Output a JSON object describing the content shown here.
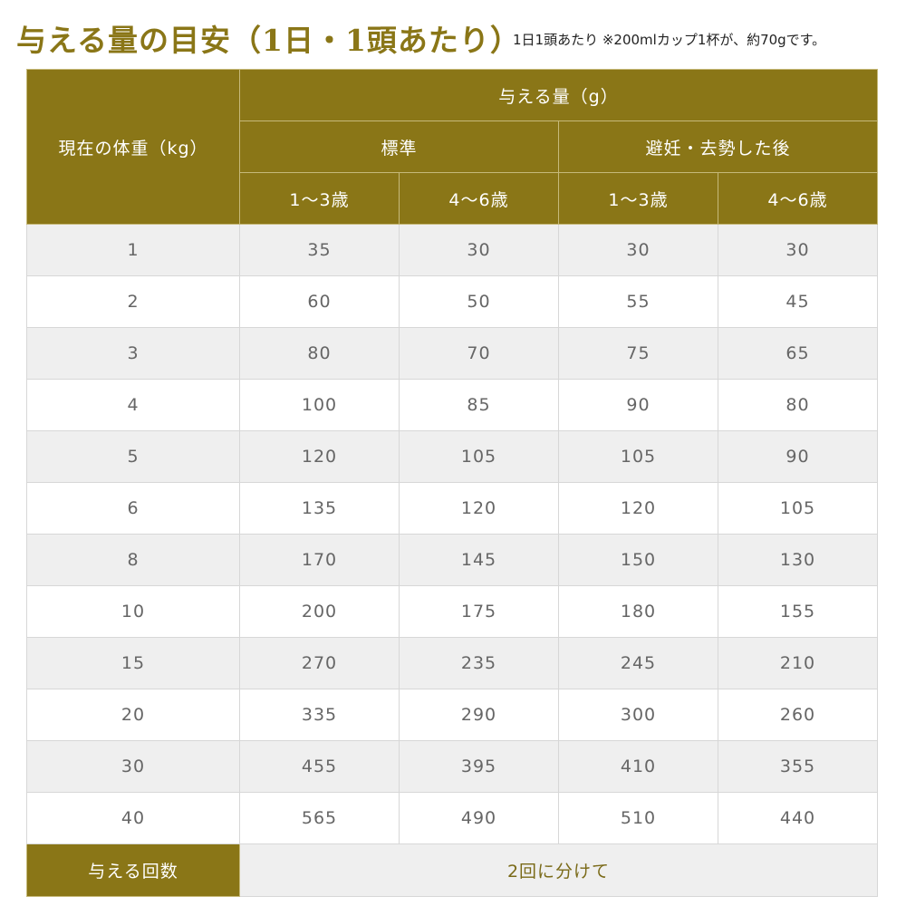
{
  "page": {
    "title": "与える量の目安（1日・1頭あたり）",
    "note": "1日1頭あたり ※200mlカップ1杯が、約70gです。"
  },
  "table": {
    "header": {
      "weight_label": "現在の体重（kg）",
      "amount_label": "与える量（g）",
      "group_standard": "標準",
      "group_neutered": "避妊・去勢した後",
      "age_1_3": "1～3歳",
      "age_4_6": "4～6歳"
    },
    "rows": [
      [
        "1",
        "35",
        "30",
        "30",
        "30"
      ],
      [
        "2",
        "60",
        "50",
        "55",
        "45"
      ],
      [
        "3",
        "80",
        "70",
        "75",
        "65"
      ],
      [
        "4",
        "100",
        "85",
        "90",
        "80"
      ],
      [
        "5",
        "120",
        "105",
        "105",
        "90"
      ],
      [
        "6",
        "135",
        "120",
        "120",
        "105"
      ],
      [
        "8",
        "170",
        "145",
        "150",
        "130"
      ],
      [
        "10",
        "200",
        "175",
        "180",
        "155"
      ],
      [
        "15",
        "270",
        "235",
        "245",
        "210"
      ],
      [
        "20",
        "335",
        "290",
        "300",
        "260"
      ],
      [
        "30",
        "455",
        "395",
        "410",
        "355"
      ],
      [
        "40",
        "565",
        "490",
        "510",
        "440"
      ]
    ],
    "footer": {
      "label": "与える回数",
      "value": "2回に分けて"
    }
  },
  "colors": {
    "accent": "#8a7617",
    "row_alt": "#efefef"
  }
}
